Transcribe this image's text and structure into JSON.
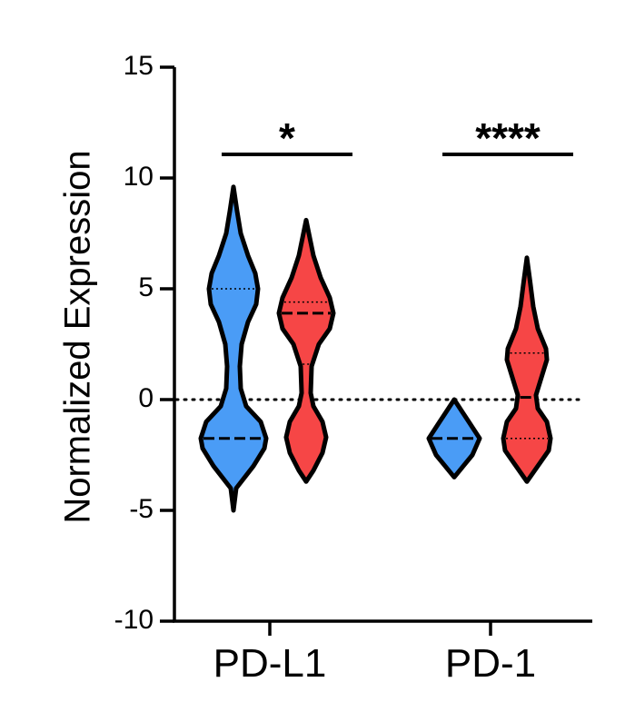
{
  "chart_data": {
    "type": "violin",
    "ylabel": "Normalized Expression",
    "ylim": [
      -10,
      15
    ],
    "yticks": [
      15,
      10,
      5,
      0,
      -5,
      -10
    ],
    "ytick_labels": [
      "15",
      "10",
      "5",
      "0",
      "-5",
      "-10"
    ],
    "reference_line_y": 0,
    "groups": [
      {
        "label": "PD-L1",
        "significance": "*",
        "violins": [
          {
            "color": "#4a9cf6",
            "min": -5.0,
            "max": 9.6,
            "median": -1.75,
            "q1": -1.75,
            "q3": 5.0,
            "profile": [
              [
                -5.0,
                0
              ],
              [
                -4.0,
                1.5
              ],
              [
                -3.0,
                11
              ],
              [
                -2.2,
                17
              ],
              [
                -1.75,
                18
              ],
              [
                -1.0,
                15
              ],
              [
                -0.3,
                7
              ],
              [
                0.5,
                4
              ],
              [
                1.5,
                3.5
              ],
              [
                2.5,
                4.5
              ],
              [
                3.5,
                8
              ],
              [
                4.3,
                12.5
              ],
              [
                5.0,
                13.5
              ],
              [
                5.7,
                12
              ],
              [
                6.5,
                8
              ],
              [
                7.5,
                4
              ],
              [
                8.5,
                2
              ],
              [
                9.6,
                0
              ]
            ]
          },
          {
            "color": "#f64646",
            "min": -3.7,
            "max": 8.1,
            "median": 3.9,
            "q1": 1.6,
            "q3": 4.4,
            "profile": [
              [
                -3.7,
                0
              ],
              [
                -3.2,
                4
              ],
              [
                -2.4,
                9
              ],
              [
                -1.7,
                11
              ],
              [
                -1.0,
                9
              ],
              [
                -0.3,
                4
              ],
              [
                0.3,
                2.5
              ],
              [
                1.5,
                3
              ],
              [
                2.5,
                7
              ],
              [
                3.2,
                13
              ],
              [
                3.9,
                15
              ],
              [
                4.6,
                13
              ],
              [
                5.5,
                8
              ],
              [
                6.5,
                4
              ],
              [
                7.3,
                2
              ],
              [
                8.1,
                0
              ]
            ]
          }
        ]
      },
      {
        "label": "PD-1",
        "significance": "****",
        "violins": [
          {
            "color": "#4a9cf6",
            "min": -3.5,
            "max": 0.0,
            "median": -1.75,
            "q1": -1.75,
            "q3": -1.75,
            "profile": [
              [
                -3.5,
                0
              ],
              [
                -3.0,
                5
              ],
              [
                -2.5,
                10
              ],
              [
                -1.75,
                14
              ],
              [
                -1.0,
                8
              ],
              [
                -0.5,
                4
              ],
              [
                0.0,
                0
              ]
            ]
          },
          {
            "color": "#f64646",
            "min": -3.7,
            "max": 6.4,
            "median": 0.1,
            "q1": -1.75,
            "q3": 2.1,
            "profile": [
              [
                -3.7,
                0
              ],
              [
                -3.0,
                6
              ],
              [
                -2.3,
                12
              ],
              [
                -1.75,
                13
              ],
              [
                -1.0,
                11
              ],
              [
                -0.4,
                6
              ],
              [
                0.2,
                5
              ],
              [
                1.0,
                8
              ],
              [
                1.8,
                11
              ],
              [
                2.3,
                10.5
              ],
              [
                3.2,
                6
              ],
              [
                4.2,
                3.5
              ],
              [
                5.3,
                1.8
              ],
              [
                6.4,
                0
              ]
            ]
          }
        ]
      }
    ]
  }
}
